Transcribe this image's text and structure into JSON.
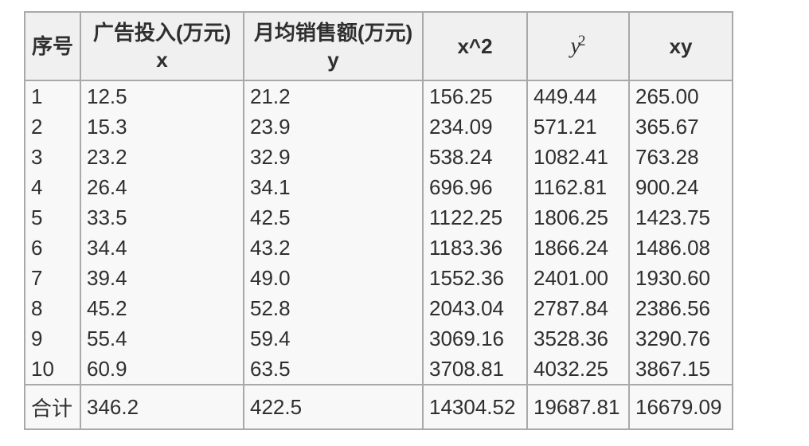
{
  "table": {
    "headers": [
      {
        "id": "index",
        "label": "序号"
      },
      {
        "id": "x",
        "label": "广告投入(万元)",
        "sub": "x"
      },
      {
        "id": "y",
        "label": "月均销售额(万元)",
        "sub": "y"
      },
      {
        "id": "x2",
        "label": "x^2"
      },
      {
        "id": "y2",
        "base": "y",
        "sup": "2"
      },
      {
        "id": "xy",
        "label": "xy"
      }
    ],
    "rows": [
      [
        "1",
        "12.5",
        "21.2",
        "156.25",
        "449.44",
        "265.00"
      ],
      [
        "2",
        "15.3",
        "23.9",
        "234.09",
        "571.21",
        "365.67"
      ],
      [
        "3",
        "23.2",
        "32.9",
        "538.24",
        "1082.41",
        "763.28"
      ],
      [
        "4",
        "26.4",
        "34.1",
        "696.96",
        "1162.81",
        "900.24"
      ],
      [
        "5",
        "33.5",
        "42.5",
        "1122.25",
        "1806.25",
        "1423.75"
      ],
      [
        "6",
        "34.4",
        "43.2",
        "1183.36",
        "1866.24",
        "1486.08"
      ],
      [
        "7",
        "39.4",
        "49.0",
        "1552.36",
        "2401.00",
        "1930.60"
      ],
      [
        "8",
        "45.2",
        "52.8",
        "2043.04",
        "2787.84",
        "2386.56"
      ],
      [
        "9",
        "55.4",
        "59.4",
        "3069.16",
        "3528.36",
        "3290.76"
      ],
      [
        "10",
        "60.9",
        "63.5",
        "3708.81",
        "4032.25",
        "3867.15"
      ]
    ],
    "total": [
      "合计",
      "346.2",
      "422.5",
      "14304.52",
      "19687.81",
      "16679.09"
    ]
  },
  "colors": {
    "border": "#a9a9a9",
    "header_bg": "#f0f0f0",
    "body_bg": "#f8f8f8",
    "text": "#2f2f2f",
    "page_bg": "#ffffff"
  }
}
